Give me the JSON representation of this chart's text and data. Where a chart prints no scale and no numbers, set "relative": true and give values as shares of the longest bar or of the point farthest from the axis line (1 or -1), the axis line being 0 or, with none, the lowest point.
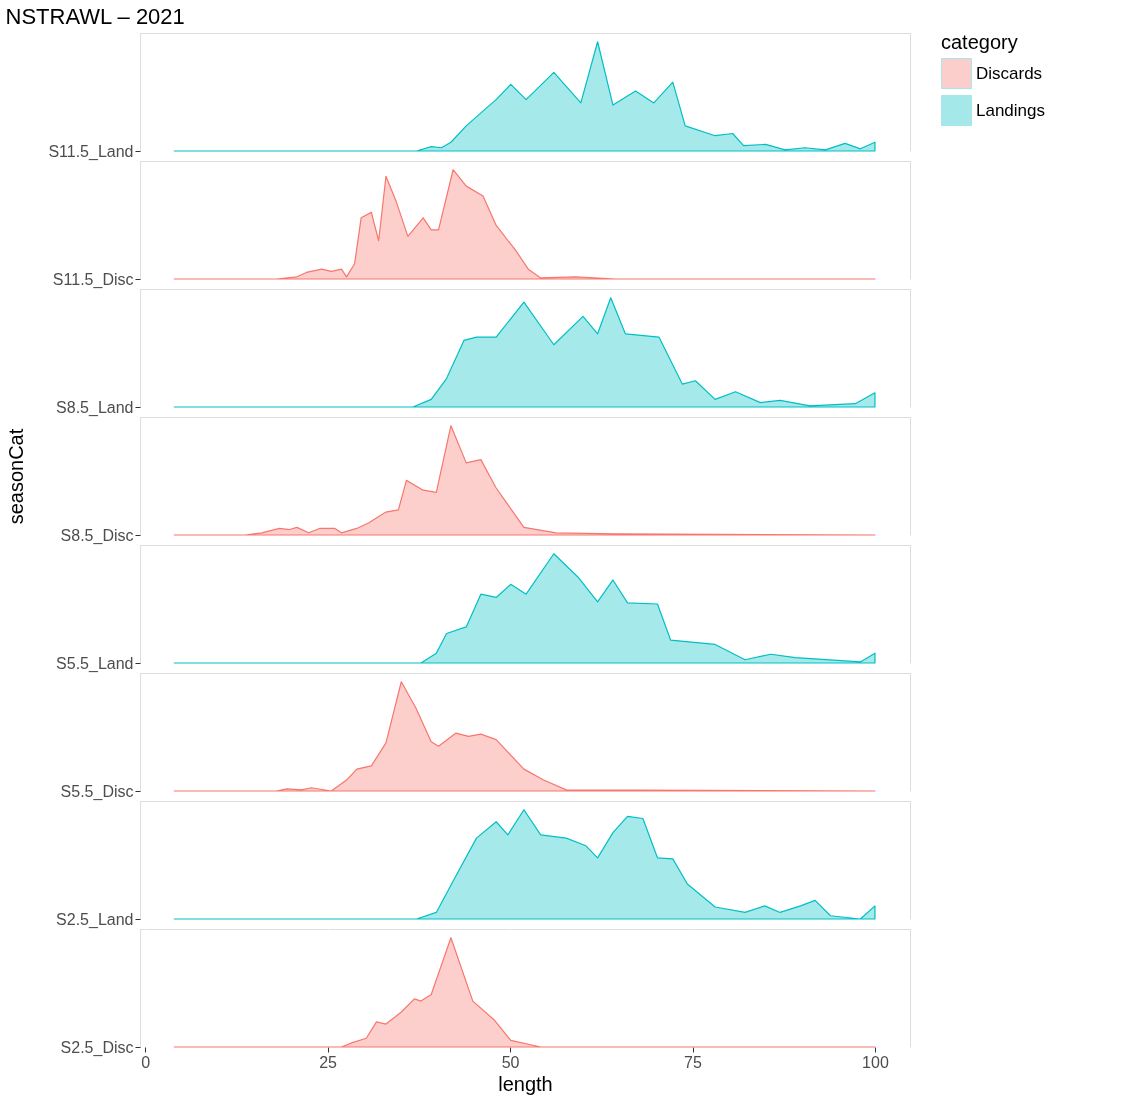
{
  "chart_data": [
    {
      "type": "area",
      "title": "NSTRAWL –  2021",
      "legend": "right",
      "legend_title": "category",
      "relative": true,
      "grid": true,
      "tick_labels": "y",
      "xlim": [
        -0.7,
        104.8
      ],
      "y_categories": [
        "S11.5_Land"
      ],
      "series": [
        {
          "name": "Landings",
          "color": "#00bfc4",
          "x": [
            4,
            37.2,
            39.2,
            40.6,
            41.9,
            44,
            46.7,
            48.1,
            50.1,
            52.2,
            56,
            59.7,
            62,
            64.1,
            67.2,
            69.7,
            72.3,
            74,
            78.1,
            80.5,
            82,
            85,
            87.7,
            90.4,
            93.2,
            95.9,
            98,
            100
          ],
          "values": [
            0,
            0,
            0.04,
            0.03,
            0.08,
            0.23,
            0.39,
            0.47,
            0.61,
            0.47,
            0.72,
            0.44,
            1,
            0.42,
            0.55,
            0.44,
            0.63,
            0.23,
            0.14,
            0.16,
            0.05,
            0.06,
            0.01,
            0.03,
            0.01,
            0.07,
            0.02,
            0.08
          ]
        }
      ]
    },
    {
      "type": "area",
      "relative": true,
      "grid": true,
      "tick_labels": "y",
      "xlim": [
        -0.7,
        104.8
      ],
      "y_categories": [
        "S11.5_Disc"
      ],
      "series": [
        {
          "name": "Discards",
          "color": "#f8766d",
          "x": [
            4,
            18,
            20.8,
            22.1,
            24.2,
            25.5,
            26.9,
            27.6,
            28.7,
            29.6,
            31,
            32,
            33,
            34.4,
            36,
            38.1,
            39.2,
            40.2,
            42.2,
            44,
            46.3,
            48.1,
            50.8,
            52.5,
            54.2,
            59,
            64.5,
            100
          ],
          "values": [
            0,
            0,
            0.02,
            0.06,
            0.09,
            0.07,
            0.09,
            0.02,
            0.14,
            0.56,
            0.61,
            0.35,
            0.94,
            0.71,
            0.39,
            0.56,
            0.45,
            0.45,
            1,
            0.85,
            0.76,
            0.49,
            0.26,
            0.09,
            0.01,
            0.02,
            0,
            0
          ]
        }
      ]
    },
    {
      "type": "area",
      "relative": true,
      "grid": true,
      "tick_labels": "y",
      "xlim": [
        -0.7,
        104.8
      ],
      "y_categories": [
        "S8.5_Land"
      ],
      "series": [
        {
          "color": "#00bfc4",
          "x": [
            4,
            36.7,
            39.2,
            41.3,
            43.7,
            45.4,
            48.1,
            51.9,
            56,
            60,
            62,
            63.8,
            65.8,
            70.4,
            73.6,
            75.4,
            78.1,
            80.9,
            84.3,
            87,
            91.1,
            97.3,
            100
          ],
          "values": [
            0,
            0,
            0.07,
            0.26,
            0.61,
            0.64,
            0.64,
            0.96,
            0.57,
            0.83,
            0.67,
            1,
            0.67,
            0.64,
            0.21,
            0.24,
            0.07,
            0.14,
            0.04,
            0.06,
            0.01,
            0.03,
            0.13
          ]
        }
      ]
    },
    {
      "type": "area",
      "relative": true,
      "grid": true,
      "tick_labels": "y",
      "xlim": [
        -0.7,
        104.8
      ],
      "y_categories": [
        "S8.5_Disc"
      ],
      "ylabel": "seasonCat",
      "series": [
        {
          "color": "#f8766d",
          "x": [
            4,
            13.7,
            16,
            18.4,
            19.8,
            20.8,
            22.4,
            23.9,
            26,
            26.9,
            29,
            30.6,
            33,
            34.7,
            35.8,
            38.1,
            39.9,
            41.9,
            44,
            46,
            48.1,
            51.9,
            56.3,
            64.5,
            100
          ],
          "values": [
            0,
            0,
            0.02,
            0.06,
            0.05,
            0.07,
            0.02,
            0.06,
            0.06,
            0.02,
            0.06,
            0.11,
            0.21,
            0.23,
            0.5,
            0.41,
            0.39,
            1,
            0.66,
            0.69,
            0.43,
            0.07,
            0.02,
            0.01,
            0
          ]
        }
      ]
    },
    {
      "type": "area",
      "relative": true,
      "grid": true,
      "tick_labels": "y",
      "xlim": [
        -0.7,
        104.8
      ],
      "y_categories": [
        "S5.5_Land"
      ],
      "series": [
        {
          "color": "#00bfc4",
          "x": [
            4,
            37.8,
            39.9,
            41.3,
            44,
            46,
            48.1,
            50.1,
            52.2,
            56,
            59.4,
            62,
            64.1,
            66.1,
            70.2,
            72,
            78.1,
            82.2,
            85.7,
            89.1,
            98,
            100
          ],
          "values": [
            0,
            0,
            0.09,
            0.27,
            0.33,
            0.63,
            0.6,
            0.72,
            0.63,
            1,
            0.78,
            0.56,
            0.76,
            0.55,
            0.54,
            0.21,
            0.17,
            0.03,
            0.08,
            0.05,
            0.01,
            0.09
          ]
        }
      ]
    },
    {
      "type": "area",
      "relative": true,
      "grid": true,
      "tick_labels": "y",
      "xlim": [
        -0.7,
        104.8
      ],
      "y_categories": [
        "S5.5_Disc"
      ],
      "series": [
        {
          "color": "#f8766d",
          "x": [
            4,
            18,
            19.4,
            21.4,
            22.8,
            25.5,
            27.6,
            29,
            31,
            33,
            35.1,
            37.1,
            39.2,
            40.2,
            42.6,
            44.3,
            46,
            48.1,
            51.9,
            54.6,
            57.7,
            100
          ],
          "values": [
            0,
            0,
            0.02,
            0.01,
            0.03,
            0,
            0.1,
            0.2,
            0.23,
            0.44,
            1,
            0.76,
            0.45,
            0.41,
            0.53,
            0.5,
            0.52,
            0.47,
            0.2,
            0.1,
            0.01,
            0
          ]
        }
      ]
    },
    {
      "type": "area",
      "relative": true,
      "grid": true,
      "tick_labels": "y",
      "xlim": [
        -0.7,
        104.8
      ],
      "y_categories": [
        "S2.5_Land"
      ],
      "series": [
        {
          "color": "#00bfc4",
          "x": [
            4,
            37.2,
            39.9,
            42.3,
            45.4,
            48.1,
            49.7,
            51.9,
            54.2,
            57.7,
            60.4,
            62,
            64.1,
            66.1,
            68.2,
            70.2,
            72.3,
            74.3,
            78.1,
            82.2,
            84.9,
            87,
            89.8,
            91.8,
            93.9,
            98,
            100
          ],
          "values": [
            0,
            0,
            0.06,
            0.36,
            0.74,
            0.89,
            0.77,
            1,
            0.77,
            0.74,
            0.67,
            0.56,
            0.79,
            0.94,
            0.92,
            0.56,
            0.55,
            0.32,
            0.11,
            0.06,
            0.12,
            0.06,
            0.12,
            0.17,
            0.03,
            0,
            0.12
          ]
        }
      ]
    },
    {
      "type": "area",
      "relative": true,
      "grid": true,
      "xlabel": "length",
      "xlim": [
        -0.7,
        104.8
      ],
      "xticks": [
        0,
        25,
        50,
        75,
        100
      ],
      "y_categories": [
        "S2.5_Disc"
      ],
      "series": [
        {
          "color": "#f8766d",
          "x": [
            4,
            26.9,
            28.4,
            30.3,
            31.7,
            33,
            35.1,
            36.9,
            37.8,
            39.2,
            41.9,
            44.9,
            47.8,
            50.1,
            54.2,
            100
          ],
          "values": [
            0,
            0,
            0.04,
            0.08,
            0.23,
            0.21,
            0.32,
            0.44,
            0.42,
            0.48,
            1,
            0.42,
            0.25,
            0.06,
            0,
            0
          ]
        }
      ]
    }
  ]
}
